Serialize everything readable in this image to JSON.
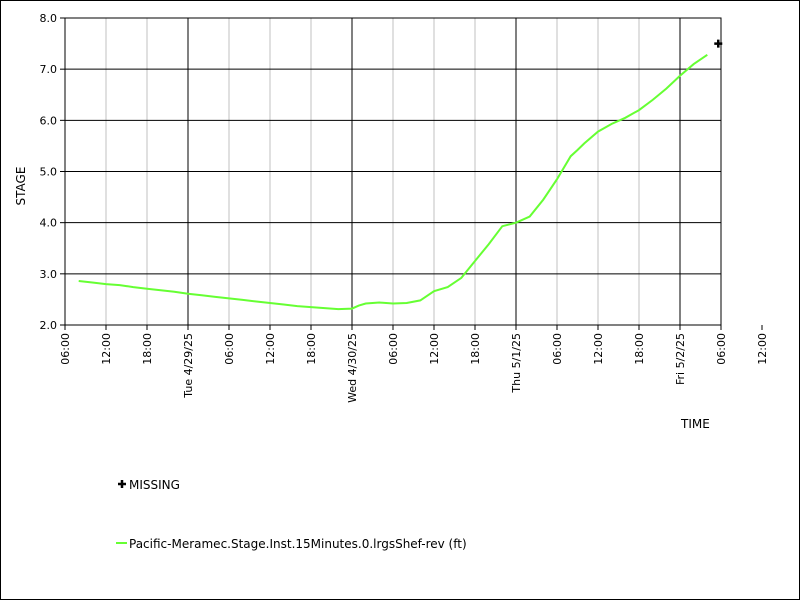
{
  "chart_data": {
    "type": "line",
    "ylabel": "STAGE",
    "xlabel": "TIME",
    "ylim": [
      2.0,
      8.0
    ],
    "y_ticks": [
      "2.0",
      "3.0",
      "4.0",
      "5.0",
      "6.0",
      "7.0",
      "8.0"
    ],
    "x_tick_labels": [
      "06:00",
      "12:00",
      "18:00",
      "Tue 4/29/25",
      "06:00",
      "12:00",
      "18:00",
      "Wed 4/30/25",
      "06:00",
      "12:00",
      "18:00",
      "Thu 5/1/25",
      "06:00",
      "12:00",
      "18:00",
      "Fri 5/2/25",
      "06:00",
      "12:00"
    ],
    "x_range_hours": [
      6,
      102
    ],
    "grid": true,
    "legend_placement": "bottom-left",
    "series": [
      {
        "name": "Pacific-Meramec.Stage.Inst.15Minutes.0.lrgsShef-rev (ft)",
        "color": "#66ff33",
        "x_hours": [
          8,
          10,
          12,
          14,
          15,
          16,
          18,
          20,
          22,
          24,
          26,
          28,
          30,
          32,
          34,
          36,
          38,
          40,
          42,
          44,
          46,
          48,
          49,
          50,
          52,
          54,
          56,
          58,
          60,
          62,
          64,
          66,
          68,
          70,
          72,
          74,
          76,
          78,
          80,
          81,
          82,
          84,
          86,
          88,
          90,
          92,
          94,
          96,
          98,
          100
        ],
        "values": [
          2.86,
          2.83,
          2.8,
          2.78,
          2.76,
          2.74,
          2.71,
          2.68,
          2.65,
          2.61,
          2.58,
          2.55,
          2.52,
          2.49,
          2.46,
          2.43,
          2.4,
          2.37,
          2.35,
          2.33,
          2.31,
          2.32,
          2.38,
          2.42,
          2.44,
          2.42,
          2.43,
          2.48,
          2.66,
          2.74,
          2.92,
          3.25,
          3.58,
          3.93,
          4.0,
          4.12,
          4.45,
          4.85,
          5.3,
          5.42,
          5.55,
          5.78,
          5.93,
          6.05,
          6.2,
          6.4,
          6.62,
          6.87,
          7.1,
          7.28
        ]
      }
    ],
    "markers": [
      {
        "name": "MISSING",
        "symbol": "+",
        "x_hours": 101.6,
        "value": 7.5
      }
    ]
  },
  "legend": {
    "missing_label": "MISSING",
    "series_label": "Pacific-Meramec.Stage.Inst.15Minutes.0.lrgsShef-rev (ft)"
  }
}
